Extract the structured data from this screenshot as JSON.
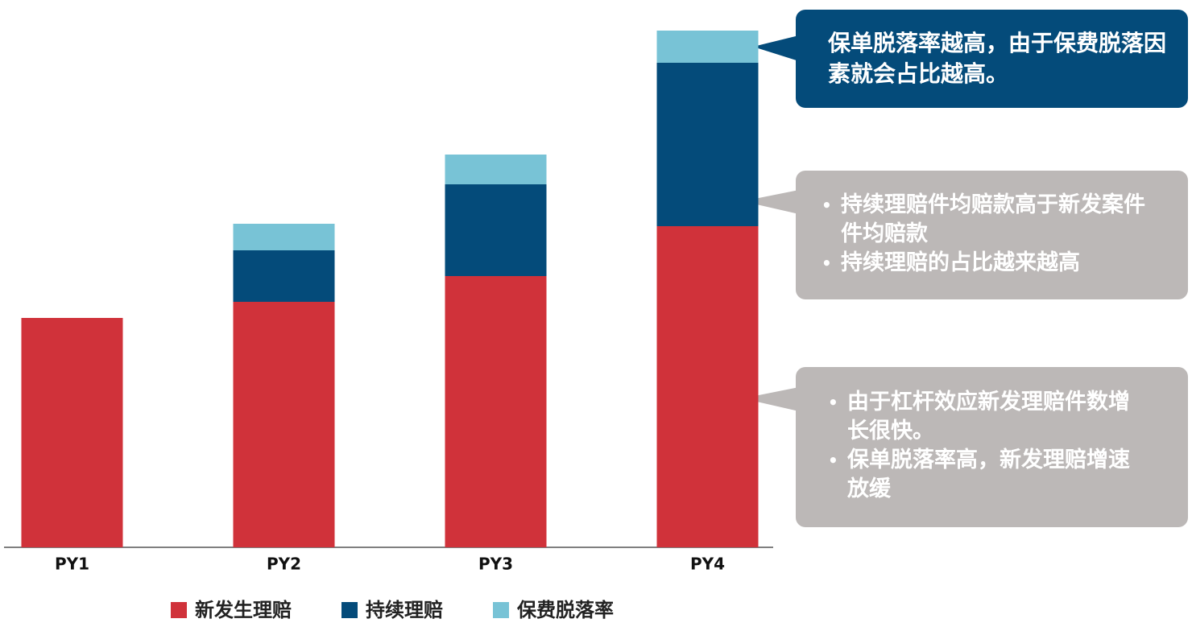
{
  "chart_data": {
    "type": "stacked-bar",
    "categories": [
      "PY1",
      "PY2",
      "PY3",
      "PY4"
    ],
    "series": [
      {
        "name": "新发生理赔",
        "color": "#d0323a",
        "values": [
          285,
          305,
          337,
          399
        ]
      },
      {
        "name": "持续理赔",
        "color": "#044b7a",
        "values": [
          null,
          64,
          114,
          203
        ]
      },
      {
        "name": "保费脱落率",
        "color": "#78c3d6",
        "values": [
          null,
          33,
          37,
          40
        ]
      }
    ],
    "annotations": [
      {
        "text": "保单脱落率越高，由于保费脱落因素就会占比越高。"
      },
      {
        "items": [
          "持续理赔件均赔款高于新发案件件均赔款",
          "持续理赔的占比越来越高"
        ]
      },
      {
        "items": [
          "由于杠杆效应新发理赔件数增长很快。",
          "保单脱落率高，新发理赔增速放缓"
        ]
      }
    ]
  }
}
